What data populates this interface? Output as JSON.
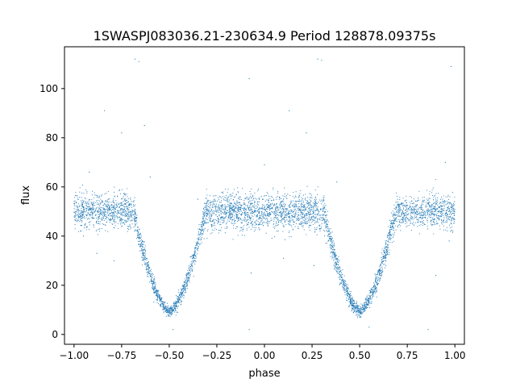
{
  "chart_data": {
    "type": "scatter",
    "title": "1SWASPJ083036.21-230634.9 Period 128878.09375s",
    "xlabel": "phase",
    "ylabel": "flux",
    "xlim": [
      -1.05,
      1.05
    ],
    "ylim": [
      -4,
      117
    ],
    "x_ticks": [
      -1.0,
      -0.75,
      -0.5,
      -0.25,
      0.0,
      0.25,
      0.5,
      0.75,
      1.0
    ],
    "x_tick_labels": [
      "−1.00",
      "−0.75",
      "−0.50",
      "−0.25",
      "0.00",
      "0.25",
      "0.50",
      "0.75",
      "1.00"
    ],
    "y_ticks": [
      0,
      20,
      40,
      60,
      80,
      100
    ],
    "y_tick_labels": [
      "0",
      "20",
      "40",
      "60",
      "80",
      "100"
    ],
    "grid": false,
    "legend": "none",
    "series": [
      {
        "marker_color": "#1f77b4",
        "profile": {
          "baseline_flux": 50,
          "baseline_scatter": 3.5,
          "eclipse_centers": [
            -0.5,
            0.5
          ],
          "eclipse_min_flux": 9.5,
          "eclipse_half_width": 0.19,
          "plateau_range": [
            0.68,
            0.98
          ],
          "plateau_flux": 50
        },
        "outliers": [
          {
            "x": -0.68,
            "y": 112
          },
          {
            "x": -0.66,
            "y": 111
          },
          {
            "x": 0.28,
            "y": 112
          },
          {
            "x": 0.3,
            "y": 111.5
          },
          {
            "x": 0.98,
            "y": 109
          },
          {
            "x": -0.84,
            "y": 91
          },
          {
            "x": 0.13,
            "y": 91
          },
          {
            "x": -0.75,
            "y": 82
          },
          {
            "x": -0.63,
            "y": 85
          },
          {
            "x": 0.22,
            "y": 82
          },
          {
            "x": -0.92,
            "y": 66
          },
          {
            "x": -0.6,
            "y": 64
          },
          {
            "x": 0.0,
            "y": 69
          },
          {
            "x": 0.95,
            "y": 70
          },
          {
            "x": 0.38,
            "y": 62
          },
          {
            "x": -0.08,
            "y": 104
          },
          {
            "x": -0.95,
            "y": 40
          },
          {
            "x": -0.88,
            "y": 33
          },
          {
            "x": -0.79,
            "y": 30
          },
          {
            "x": 0.1,
            "y": 31
          },
          {
            "x": 0.26,
            "y": 28
          },
          {
            "x": 0.9,
            "y": 24
          },
          {
            "x": 0.97,
            "y": 38
          },
          {
            "x": -0.35,
            "y": 55
          },
          {
            "x": -0.2,
            "y": 45
          },
          {
            "x": -0.07,
            "y": 25
          },
          {
            "x": 0.55,
            "y": 3
          },
          {
            "x": -0.48,
            "y": 2
          },
          {
            "x": 0.86,
            "y": 2
          },
          {
            "x": -0.08,
            "y": 2
          }
        ]
      }
    ]
  }
}
